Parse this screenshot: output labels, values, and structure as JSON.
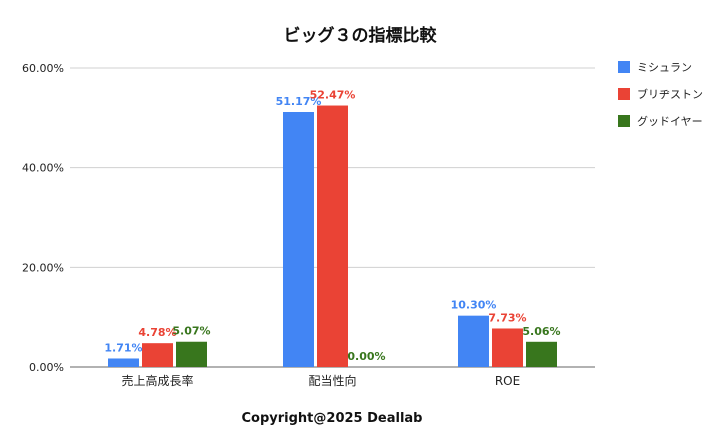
{
  "chart_data": {
    "type": "bar",
    "title": "ビッグ３の指標比較",
    "categories": [
      "売上高成長率",
      "配当性向",
      "ROE"
    ],
    "series": [
      {
        "name": "ミシュラン",
        "color": "#4285f4",
        "values": [
          1.71,
          51.17,
          10.3
        ],
        "labels": [
          "1.71%",
          "51.17%",
          "10.30%"
        ]
      },
      {
        "name": "ブリヂストン",
        "color": "#ea4335",
        "values": [
          4.78,
          52.47,
          7.73
        ],
        "labels": [
          "4.78%",
          "52.47%",
          "7.73%"
        ]
      },
      {
        "name": "グッドイヤー",
        "color": "#38761d",
        "values": [
          5.07,
          0.0,
          5.06
        ],
        "labels": [
          "5.07%",
          "0.00%",
          "5.06%"
        ]
      }
    ],
    "ylim": [
      0,
      60
    ],
    "yticks": [
      0,
      20,
      40,
      60
    ],
    "ytick_labels": [
      "0.00%",
      "20.00%",
      "40.00%",
      "60.00%"
    ],
    "grid": true,
    "legend_position": "right",
    "footer": "Copyright@2025 Deallab"
  }
}
